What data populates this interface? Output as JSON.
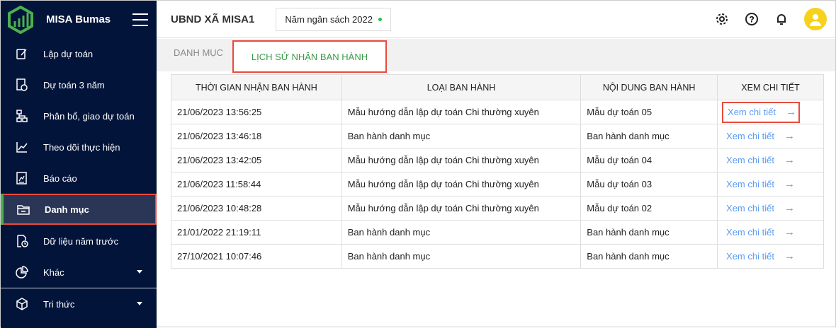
{
  "app": {
    "name": "MISA Bumas",
    "brand_color": "#4caf50",
    "sidebar_bg": "#02143a"
  },
  "sidebar": {
    "items": [
      {
        "label": "Lập dự toán",
        "icon": "edit-icon"
      },
      {
        "label": "Dự toán 3 năm",
        "icon": "budget-icon"
      },
      {
        "label": "Phân bổ, giao dự toán",
        "icon": "hierarchy-icon"
      },
      {
        "label": "Theo dõi thực hiện",
        "icon": "line-chart-icon"
      },
      {
        "label": "Báo cáo",
        "icon": "report-icon"
      },
      {
        "label": "Danh mục",
        "icon": "folder-icon",
        "active": true
      },
      {
        "label": "Dữ liệu năm trước",
        "icon": "file-clock-icon"
      },
      {
        "label": "Khác",
        "icon": "pie-chart-icon",
        "expandable": true
      },
      {
        "label": "Tri thức",
        "icon": "cube-icon",
        "expandable": true
      }
    ]
  },
  "header": {
    "org": "UBND XÃ MISA1",
    "year_selector": "Năm ngân sách 2022"
  },
  "tabs": [
    {
      "label": "DANH MỤC"
    },
    {
      "label": "LỊCH SỬ NHẬN BAN HÀNH",
      "active": true
    }
  ],
  "table": {
    "columns": [
      "Thời gian nhận ban hành",
      "Loại ban hành",
      "Nội dung ban hành",
      "Xem chi tiết"
    ],
    "rows": [
      {
        "time": "21/06/2023 13:56:25",
        "type": "Mẫu hướng dẫn lập dự toán Chi thường xuyên",
        "content": "Mẫu dự toán 05",
        "link": "Xem chi tiết"
      },
      {
        "time": "21/06/2023 13:46:18",
        "type": "Ban hành danh mục",
        "content": "Ban hành danh mục",
        "link": "Xem chi tiết"
      },
      {
        "time": "21/06/2023 13:42:05",
        "type": "Mẫu hướng dẫn lập dự toán Chi thường xuyên",
        "content": "Mẫu dự toán 04",
        "link": "Xem chi tiết"
      },
      {
        "time": "21/06/2023 11:58:44",
        "type": "Mẫu hướng dẫn lập dự toán Chi thường xuyên",
        "content": "Mẫu dự toán 03",
        "link": "Xem chi tiết"
      },
      {
        "time": "21/06/2023 10:48:28",
        "type": "Mẫu hướng dẫn lập dự toán Chi thường xuyên",
        "content": "Mẫu dự toán 02",
        "link": "Xem chi tiết"
      },
      {
        "time": "21/01/2022 21:19:11",
        "type": "Ban hành danh mục",
        "content": "Ban hành danh mục",
        "link": "Xem chi tiết"
      },
      {
        "time": "27/10/2021 10:07:46",
        "type": "Ban hành danh mục",
        "content": "Ban hành danh mục",
        "link": "Xem chi tiết"
      }
    ]
  }
}
